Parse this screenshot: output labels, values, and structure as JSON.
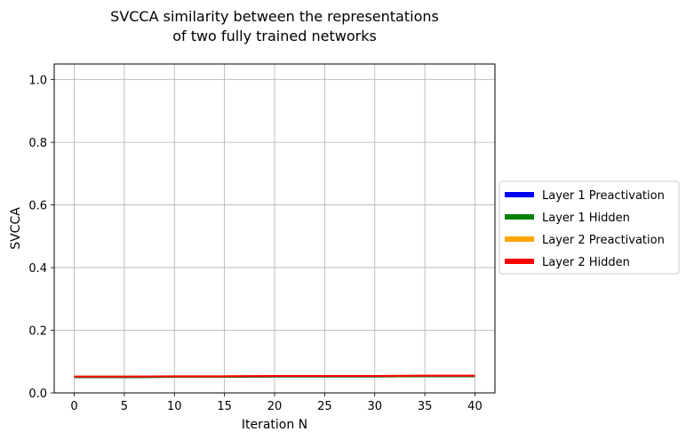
{
  "chart_data": {
    "type": "line",
    "title_line1": "SVCCA similarity between the representations",
    "title_line2": "of  two fully trained networks",
    "xlabel": "Iteration N",
    "ylabel": "SVCCA",
    "xlim": [
      -2,
      42
    ],
    "ylim": [
      0.0,
      1.05
    ],
    "xticks": [
      0,
      5,
      10,
      15,
      20,
      25,
      30,
      35,
      40
    ],
    "yticks": [
      0.0,
      0.2,
      0.4,
      0.6,
      0.8,
      1.0
    ],
    "grid": true,
    "legend_position": "outside-right",
    "series": [
      {
        "name": "Layer 1 Preactivation",
        "color": "#0000ff",
        "x": [
          0,
          5,
          10,
          15,
          20,
          25,
          30,
          35,
          40
        ],
        "y": [
          0.05,
          0.05,
          0.051,
          0.051,
          0.052,
          0.052,
          0.052,
          0.053,
          0.053
        ]
      },
      {
        "name": "Layer 1 Hidden",
        "color": "#008000",
        "x": [
          0,
          5,
          10,
          15,
          20,
          25,
          30,
          35,
          40
        ],
        "y": [
          0.05,
          0.05,
          0.051,
          0.051,
          0.052,
          0.052,
          0.052,
          0.053,
          0.053
        ]
      },
      {
        "name": "Layer 2 Preactivation",
        "color": "#ffa500",
        "x": [
          0,
          5,
          10,
          15,
          20,
          25,
          30,
          35,
          40
        ],
        "y": [
          0.052,
          0.052,
          0.053,
          0.053,
          0.054,
          0.054,
          0.054,
          0.055,
          0.055
        ]
      },
      {
        "name": "Layer 2 Hidden",
        "color": "#ff0000",
        "x": [
          0,
          5,
          10,
          15,
          20,
          25,
          30,
          35,
          40
        ],
        "y": [
          0.052,
          0.052,
          0.053,
          0.053,
          0.054,
          0.054,
          0.054,
          0.055,
          0.055
        ]
      }
    ]
  }
}
